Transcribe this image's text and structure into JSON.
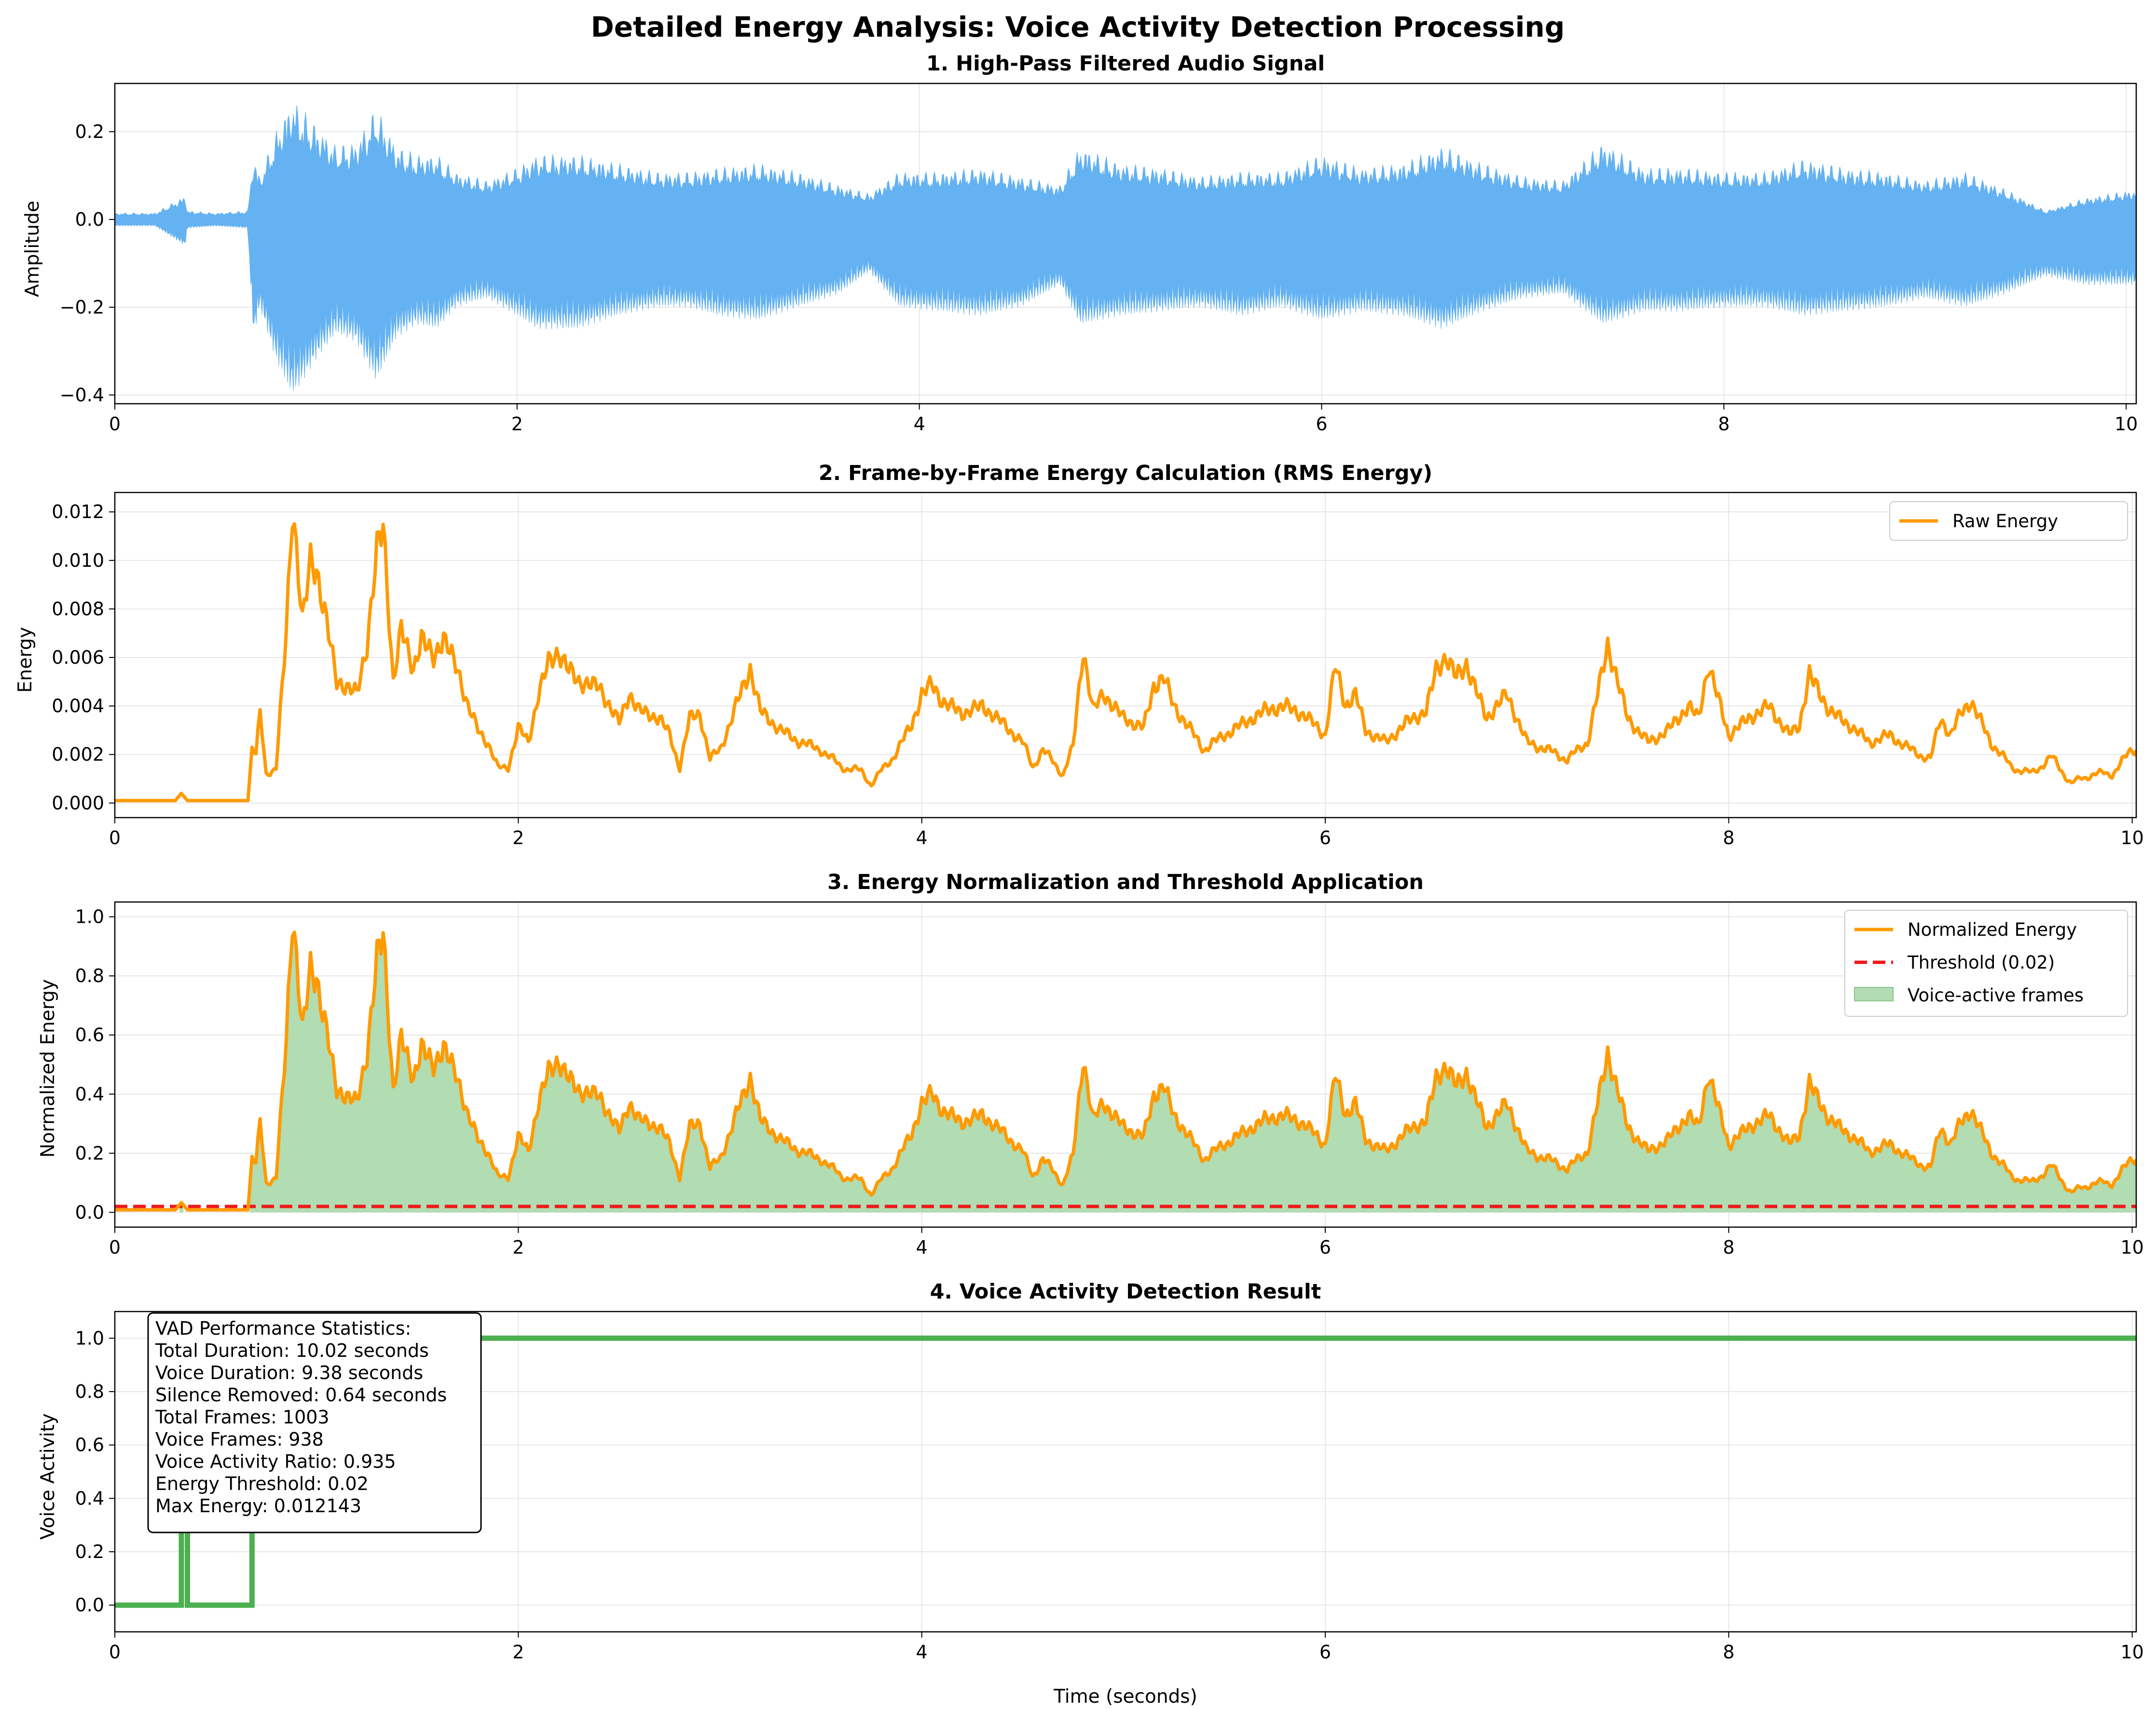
{
  "title": "Detailed Energy Analysis: Voice Activity Detection Processing",
  "colors": {
    "signal": "#64b2f2",
    "energy": "#ff9a00",
    "threshold": "#ee1a1a",
    "fill": "#b2dcb2",
    "vad": "#4caf50",
    "grid": "#e6e6e6"
  },
  "chart_data": [
    {
      "type": "line",
      "title": "1. High-Pass Filtered Audio Signal",
      "xlabel": "",
      "ylabel": "Amplitude",
      "xlim": [
        0,
        10.05
      ],
      "ylim": [
        -0.42,
        0.31
      ],
      "xticks": [
        "0",
        "2",
        "4",
        "6",
        "8",
        "10"
      ],
      "yticks": [
        "0.2",
        "0.0",
        "−0.2",
        "−0.4"
      ],
      "grid": true,
      "series": [
        {
          "envelope": {
            "t": [
              0,
              0.2,
              0.35,
              0.36,
              0.5,
              0.66,
              0.69,
              0.72,
              0.8,
              0.88,
              0.92,
              1.0,
              1.1,
              1.2,
              1.3,
              1.4,
              1.5,
              1.6,
              1.7,
              1.85,
              2.0,
              2.1,
              2.3,
              2.5,
              2.7,
              2.85,
              3.0,
              3.2,
              3.4,
              3.6,
              3.75,
              3.9,
              4.1,
              4.3,
              4.5,
              4.7,
              4.8,
              5.0,
              5.2,
              5.4,
              5.6,
              5.8,
              6.0,
              6.2,
              6.4,
              6.6,
              6.8,
              7.0,
              7.2,
              7.4,
              7.6,
              7.8,
              8.0,
              8.2,
              8.4,
              8.6,
              8.8,
              9.0,
              9.2,
              9.4,
              9.6,
              9.8,
              10.05
            ],
            "upper": [
              0.015,
              0.015,
              0.055,
              0.02,
              0.015,
              0.02,
              0.15,
              0.1,
              0.2,
              0.28,
              0.26,
              0.22,
              0.17,
              0.18,
              0.26,
              0.17,
              0.15,
              0.15,
              0.11,
              0.09,
              0.12,
              0.15,
              0.15,
              0.13,
              0.11,
              0.11,
              0.12,
              0.13,
              0.11,
              0.08,
              0.06,
              0.11,
              0.11,
              0.12,
              0.1,
              0.08,
              0.17,
              0.13,
              0.12,
              0.1,
              0.11,
              0.11,
              0.15,
              0.12,
              0.13,
              0.17,
              0.13,
              0.1,
              0.09,
              0.18,
              0.12,
              0.12,
              0.11,
              0.11,
              0.14,
              0.12,
              0.11,
              0.09,
              0.11,
              0.07,
              0.02,
              0.05,
              0.07
            ],
            "lower": [
              -0.015,
              -0.015,
              -0.06,
              -0.02,
              -0.015,
              -0.02,
              -0.27,
              -0.2,
              -0.32,
              -0.4,
              -0.38,
              -0.32,
              -0.26,
              -0.28,
              -0.37,
              -0.27,
              -0.24,
              -0.25,
              -0.2,
              -0.18,
              -0.22,
              -0.25,
              -0.25,
              -0.22,
              -0.2,
              -0.2,
              -0.22,
              -0.23,
              -0.2,
              -0.17,
              -0.12,
              -0.2,
              -0.21,
              -0.22,
              -0.2,
              -0.15,
              -0.24,
              -0.22,
              -0.21,
              -0.2,
              -0.22,
              -0.2,
              -0.23,
              -0.21,
              -0.22,
              -0.25,
              -0.21,
              -0.18,
              -0.17,
              -0.24,
              -0.21,
              -0.21,
              -0.2,
              -0.2,
              -0.22,
              -0.21,
              -0.2,
              -0.18,
              -0.2,
              -0.17,
              -0.13,
              -0.15,
              -0.15
            ]
          }
        }
      ]
    },
    {
      "type": "line",
      "title": "2. Frame-by-Frame Energy Calculation (RMS Energy)",
      "xlabel": "",
      "ylabel": "Energy",
      "xlim": [
        0,
        10.02
      ],
      "ylim": [
        -0.0006,
        0.0128
      ],
      "xticks": [
        "0",
        "2",
        "4",
        "6",
        "8",
        "10"
      ],
      "yticks": [
        "0.000",
        "0.002",
        "0.004",
        "0.006",
        "0.008",
        "0.010",
        "0.012"
      ],
      "grid": true,
      "legend": {
        "position": "top-right",
        "entries": [
          "Raw Energy"
        ]
      },
      "series": [
        {
          "name": "Raw Energy",
          "x": [
            0,
            0.3,
            0.33,
            0.36,
            0.4,
            0.66,
            0.68,
            0.7,
            0.72,
            0.75,
            0.8,
            0.85,
            0.88,
            0.9,
            0.93,
            0.97,
            1.0,
            1.05,
            1.1,
            1.15,
            1.2,
            1.25,
            1.3,
            1.33,
            1.38,
            1.42,
            1.48,
            1.52,
            1.58,
            1.63,
            1.7,
            1.75,
            1.8,
            1.85,
            1.9,
            1.95,
            2.0,
            2.05,
            2.1,
            2.15,
            2.2,
            2.25,
            2.3,
            2.4,
            2.5,
            2.55,
            2.6,
            2.7,
            2.75,
            2.8,
            2.85,
            2.9,
            2.95,
            3.0,
            3.05,
            3.1,
            3.15,
            3.2,
            3.3,
            3.4,
            3.5,
            3.6,
            3.7,
            3.75,
            3.85,
            3.95,
            4.0,
            4.05,
            4.1,
            4.2,
            4.3,
            4.4,
            4.5,
            4.55,
            4.6,
            4.7,
            4.75,
            4.8,
            4.85,
            4.9,
            5.0,
            5.1,
            5.15,
            5.2,
            5.25,
            5.3,
            5.4,
            5.5,
            5.6,
            5.7,
            5.8,
            5.9,
            6.0,
            6.05,
            6.1,
            6.15,
            6.2,
            6.3,
            6.4,
            6.5,
            6.55,
            6.6,
            6.65,
            6.7,
            6.8,
            6.9,
            7.0,
            7.1,
            7.2,
            7.3,
            7.35,
            7.4,
            7.5,
            7.6,
            7.7,
            7.8,
            7.85,
            7.9,
            8.0,
            8.1,
            8.2,
            8.3,
            8.35,
            8.4,
            8.5,
            8.6,
            8.7,
            8.8,
            8.9,
            9.0,
            9.05,
            9.1,
            9.15,
            9.2,
            9.3,
            9.4,
            9.5,
            9.6,
            9.7,
            9.8,
            9.9,
            10.0
          ],
          "y": [
            0.0001,
            0.0001,
            0.0004,
            0.0001,
            0.0001,
            0.0001,
            0.0023,
            0.002,
            0.0037,
            0.0012,
            0.0015,
            0.007,
            0.0121,
            0.0105,
            0.0075,
            0.01,
            0.0095,
            0.0075,
            0.005,
            0.0048,
            0.0045,
            0.0065,
            0.0105,
            0.0115,
            0.005,
            0.0072,
            0.0055,
            0.0068,
            0.006,
            0.0068,
            0.0055,
            0.004,
            0.003,
            0.0025,
            0.0014,
            0.0015,
            0.0031,
            0.0025,
            0.0045,
            0.0058,
            0.0062,
            0.0055,
            0.005,
            0.0048,
            0.0033,
            0.0045,
            0.0038,
            0.0035,
            0.0028,
            0.0015,
            0.0035,
            0.0037,
            0.0018,
            0.0022,
            0.0033,
            0.0045,
            0.0055,
            0.0038,
            0.003,
            0.0025,
            0.0022,
            0.0015,
            0.0013,
            0.0008,
            0.0018,
            0.0032,
            0.0045,
            0.0049,
            0.0042,
            0.0037,
            0.004,
            0.0033,
            0.0025,
            0.0015,
            0.0022,
            0.0012,
            0.0023,
            0.0063,
            0.0038,
            0.0045,
            0.0035,
            0.0031,
            0.0048,
            0.0052,
            0.004,
            0.0034,
            0.0022,
            0.0028,
            0.0033,
            0.0038,
            0.004,
            0.0036,
            0.0028,
            0.0057,
            0.004,
            0.0045,
            0.003,
            0.0025,
            0.0033,
            0.0038,
            0.0055,
            0.006,
            0.0052,
            0.0057,
            0.0035,
            0.0045,
            0.0025,
            0.0022,
            0.0018,
            0.0025,
            0.0045,
            0.0065,
            0.0035,
            0.0025,
            0.003,
            0.004,
            0.0035,
            0.0057,
            0.0028,
            0.0035,
            0.004,
            0.0028,
            0.0032,
            0.0053,
            0.0038,
            0.0032,
            0.0025,
            0.0028,
            0.0022,
            0.0018,
            0.0035,
            0.0028,
            0.0037,
            0.0042,
            0.0025,
            0.0015,
            0.0012,
            0.0019,
            0.0008,
            0.0012,
            0.0012,
            0.0022
          ]
        }
      ]
    },
    {
      "type": "area",
      "title": "3. Energy Normalization and Threshold Application",
      "xlabel": "",
      "ylabel": "Normalized Energy",
      "xlim": [
        0,
        10.02
      ],
      "ylim": [
        -0.05,
        1.05
      ],
      "xticks": [
        "0",
        "2",
        "4",
        "6",
        "8",
        "10"
      ],
      "yticks": [
        "0.0",
        "0.2",
        "0.4",
        "0.6",
        "0.8",
        "1.0"
      ],
      "grid": true,
      "legend": {
        "position": "top-right",
        "entries": [
          "Normalized Energy",
          "Threshold (0.02)",
          "Voice-active frames"
        ]
      },
      "threshold": 0.02,
      "series": [
        {
          "name": "Normalized Energy",
          "derived_from": "raw_energy / 0.012143"
        },
        {
          "name": "Threshold (0.02)",
          "y": 0.02
        },
        {
          "name": "Voice-active frames"
        }
      ]
    },
    {
      "type": "line",
      "title": "4. Voice Activity Detection Result",
      "xlabel": "Time (seconds)",
      "ylabel": "Voice Activity",
      "xlim": [
        0,
        10.02
      ],
      "ylim": [
        -0.1,
        1.1
      ],
      "xticks": [
        "0",
        "2",
        "4",
        "6",
        "8",
        "10"
      ],
      "yticks": [
        "0.0",
        "0.2",
        "0.4",
        "0.6",
        "0.8",
        "1.0"
      ],
      "grid": true,
      "series": [
        {
          "x": [
            0,
            0.33,
            0.33,
            0.36,
            0.36,
            0.68,
            0.68,
            10.02
          ],
          "y": [
            0,
            0,
            1,
            1,
            0,
            0,
            1,
            1
          ]
        }
      ],
      "stats_box": [
        "VAD Performance Statistics:",
        "Total Duration: 10.02 seconds",
        "Voice Duration: 9.38 seconds",
        "Silence Removed: 0.64 seconds",
        "Total Frames: 1003",
        "Voice Frames: 938",
        "Voice Activity Ratio: 0.935",
        "Energy Threshold: 0.02",
        "Max Energy: 0.012143"
      ]
    }
  ]
}
